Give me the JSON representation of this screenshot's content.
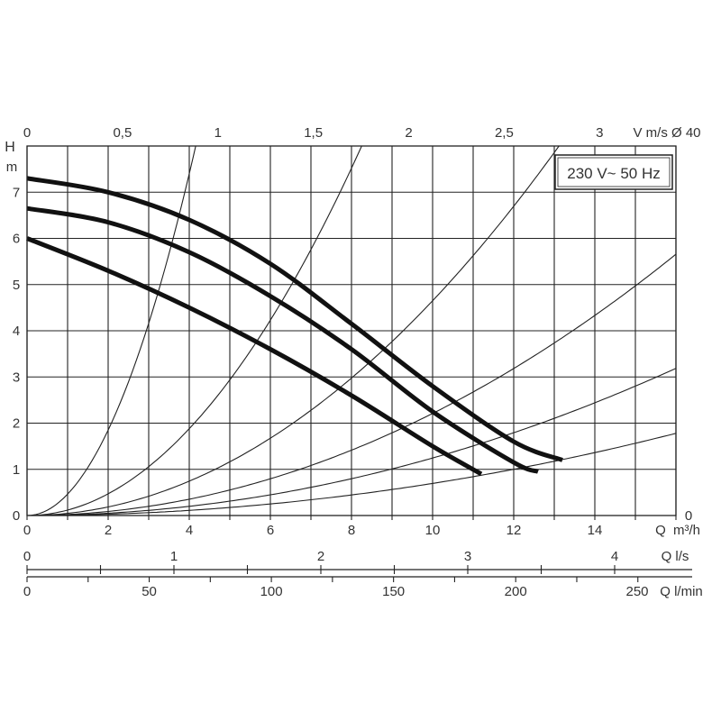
{
  "chart_data": {
    "type": "line",
    "annotation": "230 V~ 50 Hz",
    "axes": {
      "y": {
        "label": "H",
        "unit": "m",
        "ylim": [
          0,
          8
        ],
        "ticks": [
          0,
          1,
          2,
          3,
          4,
          5,
          6,
          7
        ]
      },
      "x": {
        "label": "Q",
        "unit": "m³/h",
        "xlim": [
          0,
          16
        ],
        "ticks": [
          0,
          2,
          4,
          6,
          8,
          10,
          12,
          14
        ],
        "grid_step": 1
      },
      "top": {
        "label": "V m/s Ø 40",
        "ticks": [
          "0",
          "0,5",
          "1",
          "1,5",
          "2",
          "2,5",
          "3"
        ],
        "tick_values": [
          0,
          0.5,
          1,
          1.5,
          2,
          2.5,
          3
        ]
      },
      "right": {
        "ticks": [
          "0"
        ]
      },
      "ls": {
        "label": "Q l/s",
        "ticks": [
          "0",
          "1",
          "2",
          "3",
          "4"
        ],
        "tick_values": [
          0,
          1,
          2,
          3,
          4
        ]
      },
      "lmin": {
        "label": "Q l/min",
        "ticks": [
          "0",
          "50",
          "100",
          "150",
          "200",
          "250"
        ],
        "tick_values": [
          0,
          50,
          100,
          150,
          200,
          250
        ]
      }
    },
    "grid": true,
    "series": [
      {
        "style": "pump_curve",
        "x": [
          0,
          2,
          4,
          6,
          8,
          10,
          12,
          13.2
        ],
        "y": [
          7.3,
          7.0,
          6.4,
          5.45,
          4.15,
          2.8,
          1.6,
          1.2
        ]
      },
      {
        "style": "pump_curve",
        "x": [
          0,
          2,
          4,
          6,
          8,
          10,
          12,
          12.6
        ],
        "y": [
          6.65,
          6.35,
          5.7,
          4.75,
          3.6,
          2.25,
          1.15,
          0.95
        ]
      },
      {
        "style": "pump_curve",
        "x": [
          0,
          2,
          4,
          6,
          8,
          10,
          11.2
        ],
        "y": [
          6.0,
          5.3,
          4.5,
          3.6,
          2.6,
          1.5,
          0.9
        ]
      }
    ],
    "system_curves": [
      {
        "k": 0.4625
      },
      {
        "k": 0.1175
      },
      {
        "k": 0.0465
      },
      {
        "k": 0.0221
      },
      {
        "k": 0.01245
      },
      {
        "k": 0.00695
      }
    ]
  }
}
